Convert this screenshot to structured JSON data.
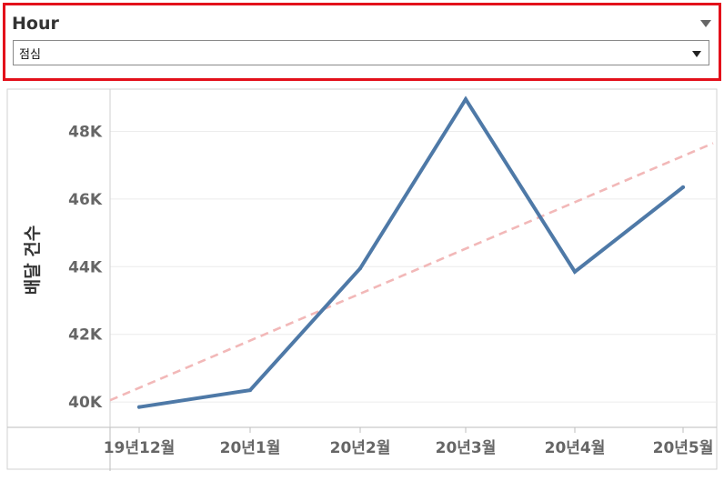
{
  "filter": {
    "title": "Hour",
    "selected": "점심"
  },
  "colors": {
    "line": "#4e79a7",
    "trend": "#f2b8b8",
    "filter_border": "#e3101b",
    "grid": "#ececec"
  },
  "chart_data": {
    "type": "line",
    "ylabel": "배달 건수",
    "xlabel": "",
    "categories": [
      "19년12월",
      "20년1월",
      "20년2월",
      "20년3월",
      "20년4월",
      "20년5월"
    ],
    "series": [
      {
        "values": [
          39850,
          40350,
          43950,
          48950,
          43850,
          46350
        ]
      }
    ],
    "trend_line": {
      "style": "dashed",
      "start": 40050,
      "end": 47650
    },
    "yticks": [
      {
        "value": 40000,
        "label": "40K"
      },
      {
        "value": 42000,
        "label": "42K"
      },
      {
        "value": 44000,
        "label": "44K"
      },
      {
        "value": 46000,
        "label": "46K"
      },
      {
        "value": 48000,
        "label": "48K"
      }
    ],
    "ylim": [
      39250,
      49250
    ],
    "grid": true
  }
}
